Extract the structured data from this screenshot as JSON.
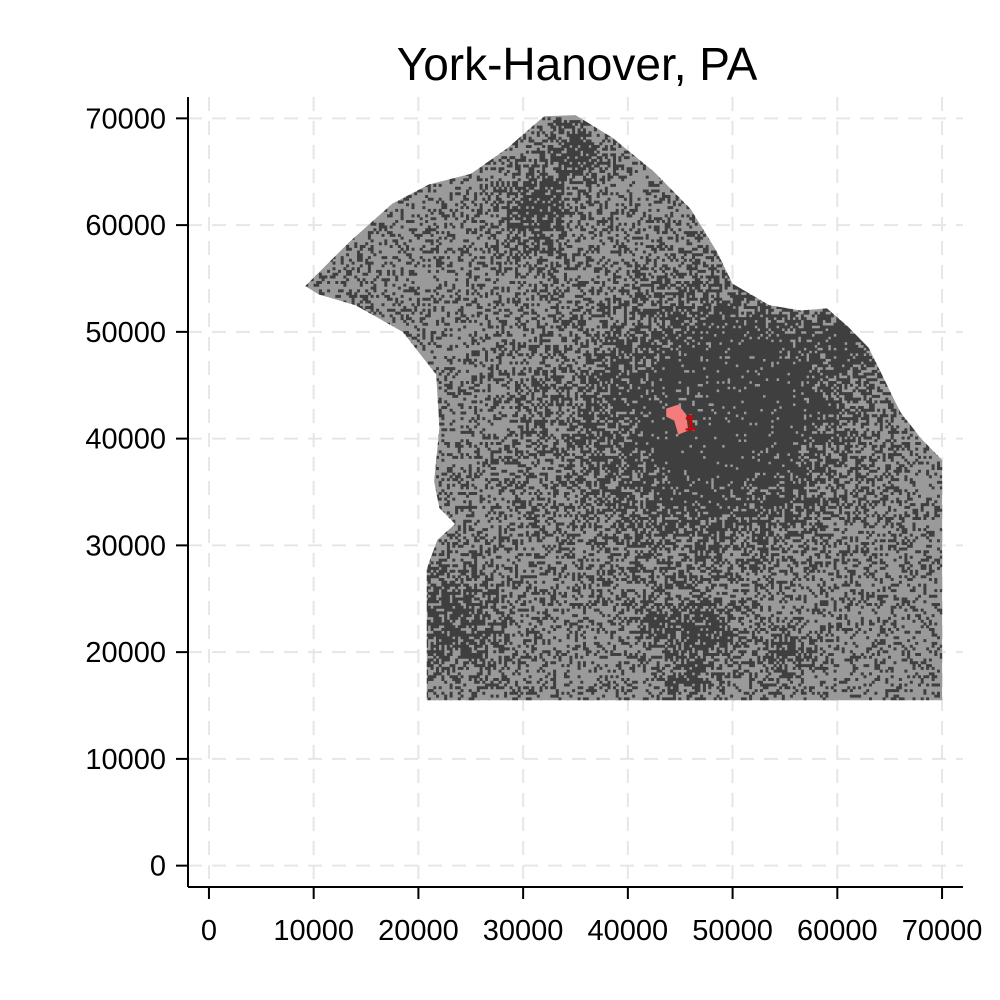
{
  "chart_data": {
    "type": "map",
    "title": "York-Hanover, PA",
    "xlabel": "",
    "ylabel": "",
    "xlim": [
      -2000,
      72000
    ],
    "ylim": [
      -2000,
      72000
    ],
    "x_ticks": [
      0,
      10000,
      20000,
      30000,
      40000,
      50000,
      60000,
      70000
    ],
    "y_ticks": [
      0,
      10000,
      20000,
      30000,
      40000,
      50000,
      60000,
      70000
    ],
    "x_tick_labels": [
      "0",
      "10000",
      "20000",
      "30000",
      "40000",
      "50000",
      "60000",
      "70000"
    ],
    "y_tick_labels": [
      "0",
      "10000",
      "20000",
      "30000",
      "40000",
      "50000",
      "60000",
      "70000"
    ],
    "grid": true,
    "region": {
      "name": "York-Hanover, PA",
      "boundary": [
        [
          9200,
          54300
        ],
        [
          13500,
          58500
        ],
        [
          17500,
          62000
        ],
        [
          21000,
          63800
        ],
        [
          25000,
          64800
        ],
        [
          28500,
          67200
        ],
        [
          32000,
          70200
        ],
        [
          35000,
          70300
        ],
        [
          38500,
          68200
        ],
        [
          42500,
          65000
        ],
        [
          46000,
          61500
        ],
        [
          48500,
          57500
        ],
        [
          50000,
          54500
        ],
        [
          53500,
          52500
        ],
        [
          56500,
          52000
        ],
        [
          59000,
          52200
        ],
        [
          61000,
          50500
        ],
        [
          63000,
          48500
        ],
        [
          64500,
          45500
        ],
        [
          66000,
          42500
        ],
        [
          68000,
          40000
        ],
        [
          70000,
          38000
        ],
        [
          70000,
          15500
        ],
        [
          20800,
          15500
        ],
        [
          20800,
          27800
        ],
        [
          21800,
          30500
        ],
        [
          23500,
          32000
        ],
        [
          22000,
          33500
        ],
        [
          21500,
          36000
        ],
        [
          22000,
          41000
        ],
        [
          21700,
          46000
        ],
        [
          18500,
          50000
        ],
        [
          14000,
          52500
        ],
        [
          10500,
          53500
        ]
      ],
      "fill_color": "#9a9a9a",
      "dense_color": "#3f3f3f",
      "urban_core": {
        "x": 45000,
        "y": 42000
      },
      "urban_clusters": [
        {
          "x": 46000,
          "y": 41000,
          "r": 9000
        },
        {
          "x": 52000,
          "y": 44000,
          "r": 6000
        },
        {
          "x": 23000,
          "y": 23000,
          "r": 3500
        },
        {
          "x": 47500,
          "y": 22000,
          "r": 2000
        },
        {
          "x": 55000,
          "y": 19500,
          "r": 1500
        },
        {
          "x": 46000,
          "y": 17500,
          "r": 1200
        },
        {
          "x": 43000,
          "y": 22500,
          "r": 1200
        },
        {
          "x": 31000,
          "y": 61500,
          "r": 2500
        },
        {
          "x": 35000,
          "y": 67000,
          "r": 2000
        },
        {
          "x": 61000,
          "y": 49000,
          "r": 1500
        }
      ]
    },
    "markers": [
      {
        "label": "1",
        "x": 45000,
        "y": 41500,
        "color": "#f47c7c"
      }
    ]
  }
}
